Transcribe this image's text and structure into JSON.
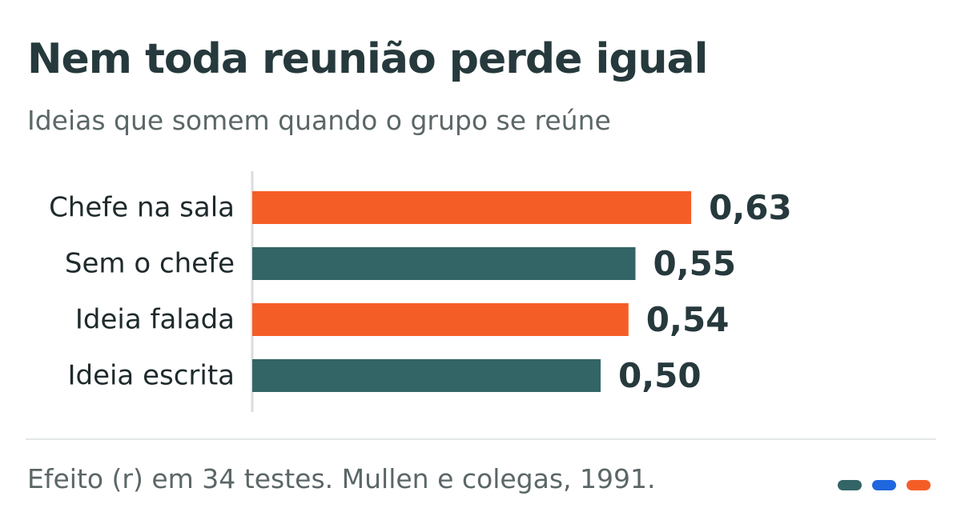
{
  "title": "Nem toda reunião perde igual",
  "subtitle": "Ideias que somem quando o grupo se reúne",
  "footer": "Efeito (r) em 34 testes. Mullen e colegas, 1991.",
  "colors": {
    "highlight": "#f55d27",
    "base": "#336566",
    "accent_blue": "#1f67de",
    "axis": "#d9dddd"
  },
  "legend_swatches": [
    "#336566",
    "#1f67de",
    "#f55d27"
  ],
  "chart_data": {
    "type": "bar",
    "orientation": "horizontal",
    "categories": [
      "Chefe na sala",
      "Sem o chefe",
      "Ideia falada",
      "Ideia escrita"
    ],
    "values": [
      0.63,
      0.55,
      0.54,
      0.5
    ],
    "value_labels": [
      "0,63",
      "0,55",
      "0,54",
      "0,50"
    ],
    "bar_colors": [
      "#f55d27",
      "#336566",
      "#f55d27",
      "#336566"
    ],
    "xlim": [
      0,
      1.1
    ],
    "grid": false,
    "xlabel": "",
    "ylabel": ""
  }
}
